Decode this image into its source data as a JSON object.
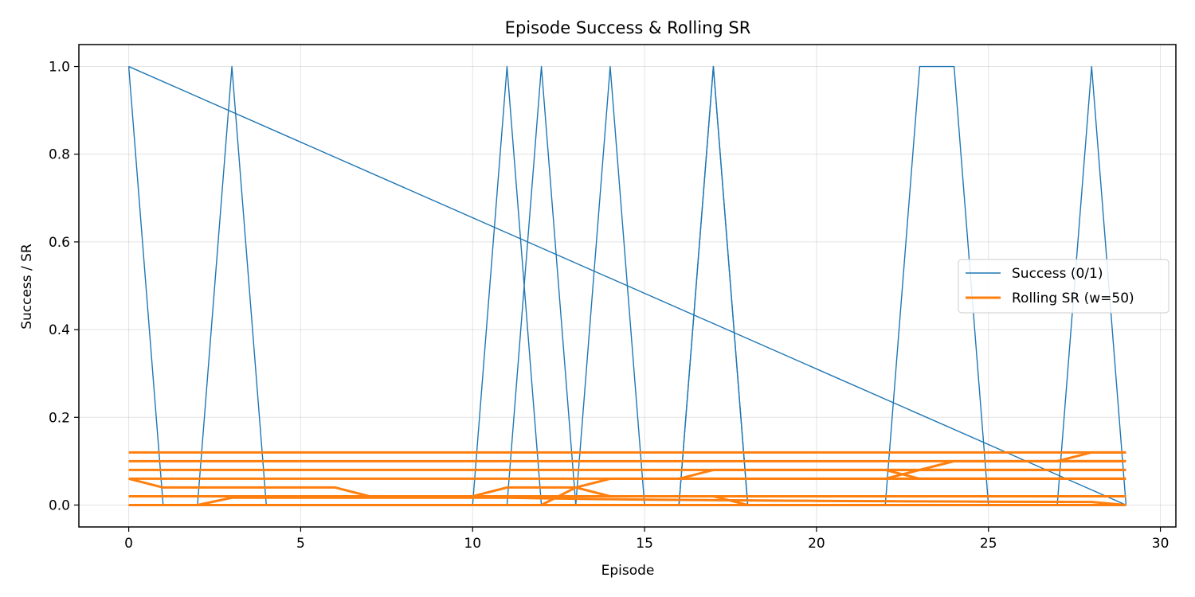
{
  "chart_data": {
    "type": "line",
    "title": "Episode Success & Rolling SR",
    "xlabel": "Episode",
    "ylabel": "Success / SR",
    "xlim": [
      -1.45,
      30.45
    ],
    "ylim": [
      -0.05,
      1.05
    ],
    "xticks": [
      0,
      5,
      10,
      15,
      20,
      25,
      30
    ],
    "xtick_labels": [
      "0",
      "5",
      "10",
      "15",
      "20",
      "25",
      "30"
    ],
    "yticks": [
      0.0,
      0.2,
      0.4,
      0.6,
      0.8,
      1.0
    ],
    "ytick_labels": [
      "0.0",
      "0.2",
      "0.4",
      "0.6",
      "0.8",
      "1.0"
    ],
    "grid": true,
    "legend_position": "center-right",
    "series": [
      {
        "name": "Success (0/1)",
        "color": "#1f77b4",
        "line_width": "thin",
        "segments": [
          {
            "x": [
              0,
              1,
              2,
              3,
              4,
              5,
              6,
              7,
              8,
              9,
              10,
              11,
              12,
              13,
              14,
              15,
              16,
              17,
              18,
              19,
              20,
              21,
              22,
              23,
              24,
              25,
              26,
              27,
              28,
              29
            ],
            "y": [
              1,
              0,
              0,
              1,
              0,
              0,
              0,
              0,
              0,
              0,
              0,
              1,
              0,
              0,
              0,
              0,
              0,
              1,
              0,
              0,
              0,
              0,
              0,
              0,
              0,
              0,
              0,
              0,
              1,
              0
            ]
          },
          {
            "x": [
              29,
              0
            ],
            "y": [
              0,
              1
            ]
          },
          {
            "x": [
              0,
              1,
              2,
              3,
              4,
              5,
              6,
              7,
              8,
              9,
              10,
              11,
              12,
              13,
              14,
              15,
              16,
              17,
              18,
              19,
              20,
              21,
              22,
              23,
              24,
              25,
              26,
              27,
              28,
              29
            ],
            "y": [
              0,
              0,
              0,
              0,
              0,
              0,
              0,
              0,
              0,
              0,
              0,
              0,
              1,
              0,
              1,
              0,
              0,
              1,
              0,
              0,
              0,
              0,
              0,
              1,
              1,
              0,
              0,
              0,
              0,
              0
            ]
          }
        ]
      },
      {
        "name": "Rolling SR (w=50)",
        "color": "#ff7f0e",
        "line_width": "thick",
        "segments": [
          {
            "x": [
              0,
              29
            ],
            "y": [
              0.12,
              0.12
            ]
          },
          {
            "x": [
              0,
              1,
              2,
              19,
              20,
              29
            ],
            "y": [
              0.1,
              0.1,
              0.1,
              0.1,
              0.1,
              0.1
            ]
          },
          {
            "x": [
              0,
              1,
              2,
              3,
              29
            ],
            "y": [
              0.08,
              0.08,
              0.08,
              0.08,
              0.08
            ]
          },
          {
            "x": [
              0,
              29
            ],
            "y": [
              0.06,
              0.06
            ]
          },
          {
            "x": [
              0,
              1,
              2,
              3,
              4,
              5,
              6,
              7,
              29
            ],
            "y": [
              0.06,
              0.04,
              0.04,
              0.04,
              0.04,
              0.04,
              0.04,
              0.02,
              0.02
            ]
          },
          {
            "x": [
              0,
              29
            ],
            "y": [
              0.02,
              0.02
            ]
          },
          {
            "x": [
              0,
              1,
              2,
              3,
              4,
              5,
              6,
              7,
              8,
              9,
              10,
              11,
              12,
              13,
              14,
              15,
              16,
              17,
              18,
              19,
              20,
              21,
              22,
              23,
              24,
              25,
              26,
              27,
              28,
              29
            ],
            "y": [
              0.0,
              0.0,
              0.0,
              0.0167,
              0.0167,
              0.0167,
              0.0167,
              0.0167,
              0.0167,
              0.0167,
              0.0167,
              0.0167,
              0.0154,
              0.0143,
              0.0133,
              0.0125,
              0.0118,
              0.0111,
              0.0105,
              0.01,
              0.0095,
              0.0091,
              0.0087,
              0.0083,
              0.008,
              0.0077,
              0.0074,
              0.0071,
              0.0069,
              0.0
            ]
          },
          {
            "x": [
              0,
              29
            ],
            "y": [
              0.0,
              0.0
            ]
          },
          {
            "x": [
              10,
              11,
              12,
              13,
              14,
              29
            ],
            "y": [
              0.02,
              0.04,
              0.04,
              0.04,
              0.06,
              0.06
            ]
          },
          {
            "x": [
              12,
              13,
              14,
              29
            ],
            "y": [
              0.0,
              0.04,
              0.02,
              0.02
            ]
          },
          {
            "x": [
              16,
              17,
              29
            ],
            "y": [
              0.06,
              0.08,
              0.08
            ]
          },
          {
            "x": [
              16,
              17,
              18,
              29
            ],
            "y": [
              0.02,
              0.02,
              0.0,
              0.0
            ]
          },
          {
            "x": [
              22,
              23,
              29
            ],
            "y": [
              0.08,
              0.06,
              0.06
            ]
          },
          {
            "x": [
              22,
              23,
              24,
              29
            ],
            "y": [
              0.06,
              0.08,
              0.1,
              0.1
            ]
          },
          {
            "x": [
              27,
              28,
              29
            ],
            "y": [
              0.1,
              0.12,
              0.12
            ]
          }
        ]
      }
    ]
  }
}
